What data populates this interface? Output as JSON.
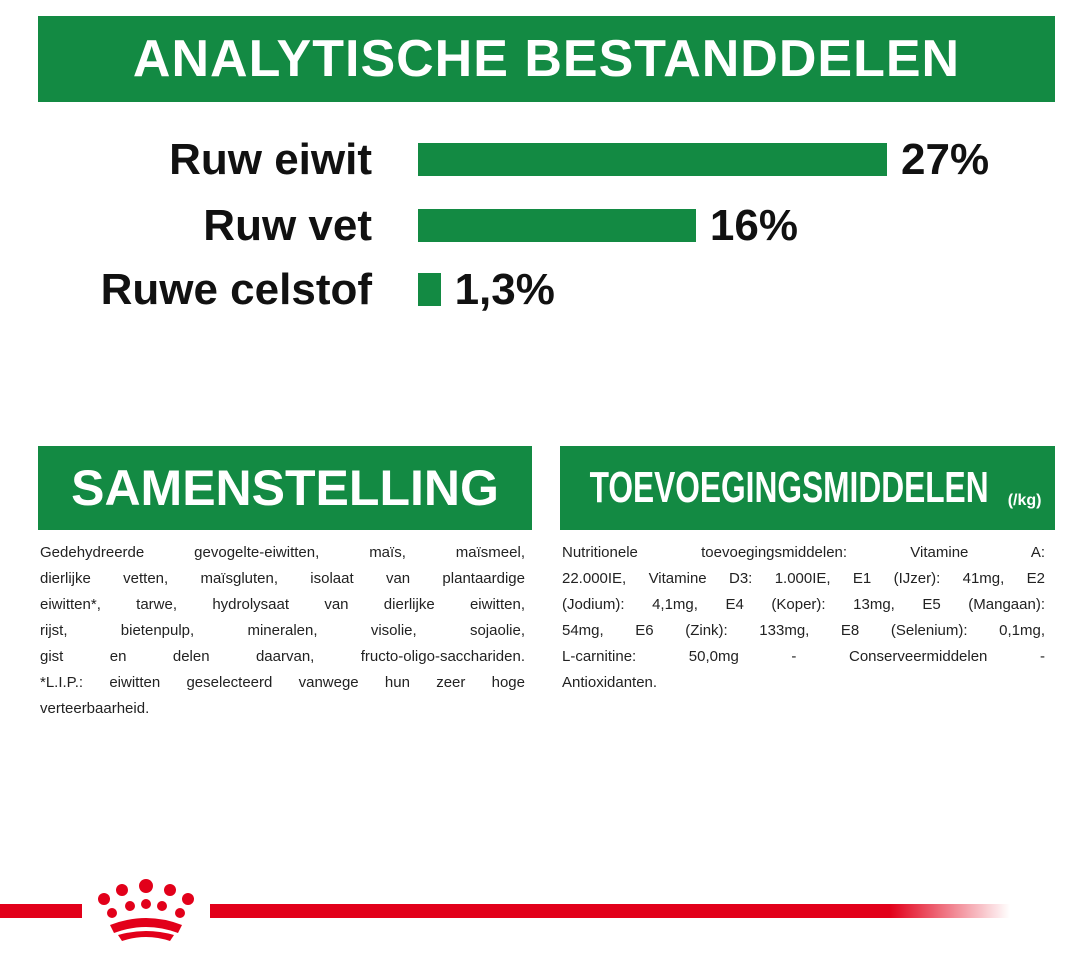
{
  "header": {
    "title": "ANALYTISCHE BESTANDDELEN"
  },
  "chart_data": {
    "type": "bar",
    "orientation": "horizontal",
    "color": "#138a43",
    "categories": [
      "Ruw eiwit",
      "Ruw vet",
      "Ruwe celstof"
    ],
    "values": [
      27,
      16,
      1.3
    ],
    "value_labels": [
      "27%",
      "16%",
      "1,3%"
    ]
  },
  "sections": [
    {
      "title": "SAMENSTELLING",
      "lines": [
        "Gedehydreerde gevogelte-eiwitten, maïs, maïsmeel,",
        "dierlijke vetten, maïsgluten, isolaat van plantaardige",
        "eiwitten*, tarwe, hydrolysaat van dierlijke eiwitten,",
        "rijst, bietenpulp, mineralen, visolie, sojaolie,",
        "gist en delen daarvan, fructo-oligo-sacchariden.",
        "*L.I.P.: eiwitten geselecteerd vanwege hun zeer hoge",
        "verteerbaarheid."
      ]
    },
    {
      "title": "TOEVOEGINGSMIDDELEN",
      "title_suffix": "(/kg)",
      "lines": [
        "Nutritionele toevoegingsmiddelen: Vitamine A:",
        "22.000IE, Vitamine D3: 1.000IE, E1 (IJzer): 41mg, E2",
        "(Jodium): 4,1mg, E4 (Koper): 13mg, E5 (Mangaan):",
        "54mg, E6 (Zink): 133mg, E8 (Selenium): 0,1mg,",
        "L-carnitine: 50,0mg - Conserveermiddelen -",
        "Antioxidanten."
      ]
    }
  ]
}
